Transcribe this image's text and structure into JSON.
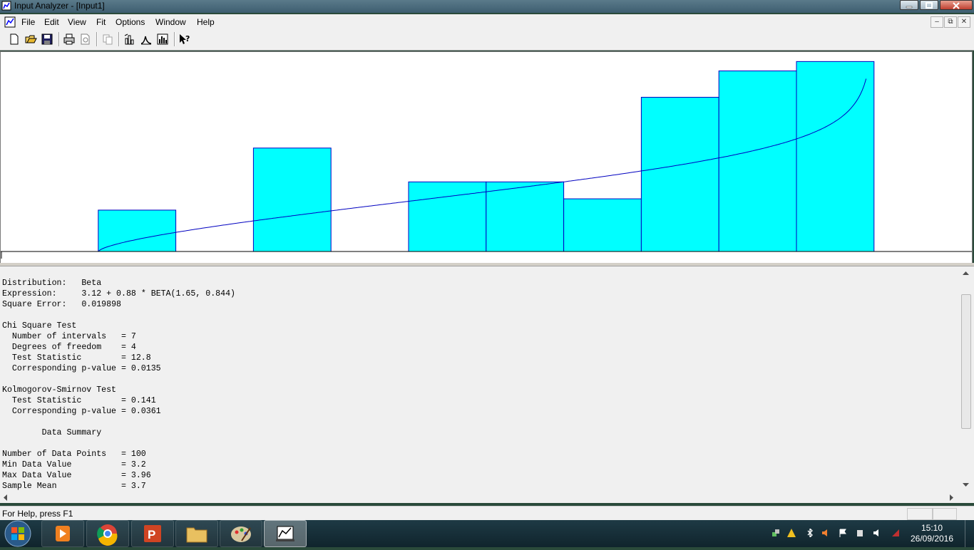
{
  "window": {
    "title": "Input Analyzer - [Input1]"
  },
  "menu": {
    "items": [
      "File",
      "Edit",
      "View",
      "Fit",
      "Options",
      "Window",
      "Help"
    ]
  },
  "toolbar": {
    "icons": [
      "new-icon",
      "open-icon",
      "save-icon",
      "print-icon",
      "print-preview-icon",
      "copy-icon",
      "fit-data-icon",
      "distribution-icon",
      "histogram-icon",
      "context-help-icon"
    ]
  },
  "chart_data": {
    "type": "bar",
    "title": "",
    "xlabel": "",
    "ylabel": "",
    "bar_color": "#00ffff",
    "edge_color": "#0000c0",
    "curve_color": "#0000c0",
    "values": [
      0,
      0.22,
      0,
      0.55,
      0,
      0.37,
      0.37,
      0.28,
      0.82,
      0.96,
      1.01
    ],
    "curve": "Beta fit: 3.12 + 0.88 * BETA(1.65, 0.844)"
  },
  "report": {
    "distribution_label": "Distribution:",
    "distribution_value": "Beta",
    "expression_label": "Expression:",
    "expression_value": "3.12 + 0.88 * BETA(1.65, 0.844)",
    "square_error_label": "Square Error:",
    "square_error_value": "0.019898",
    "chi_title": "Chi Square Test",
    "chi_intervals": "  Number of intervals   = 7",
    "chi_dof": "  Degrees of freedom    = 4",
    "chi_stat": "  Test Statistic        = 12.8",
    "chi_p": "  Corresponding p-value = 0.0135",
    "ks_title": "Kolmogorov-Smirnov Test",
    "ks_stat": "  Test Statistic        = 0.141",
    "ks_p": "  Corresponding p-value = 0.0361",
    "summary_title": "        Data Summary",
    "n_points": "Number of Data Points   = 100",
    "min_value": "Min Data Value          = 3.2",
    "max_value": "Max Data Value          = 3.96",
    "mean": "Sample Mean             = 3.7"
  },
  "status": {
    "help_text": "For Help, press F1"
  },
  "taskbar": {
    "time": "15:10",
    "date": "26/09/2016",
    "apps": [
      "start-orb-icon",
      "media-player-icon",
      "chrome-icon",
      "powerpoint-icon",
      "explorer-icon",
      "paint-icon",
      "input-analyzer-icon"
    ]
  }
}
